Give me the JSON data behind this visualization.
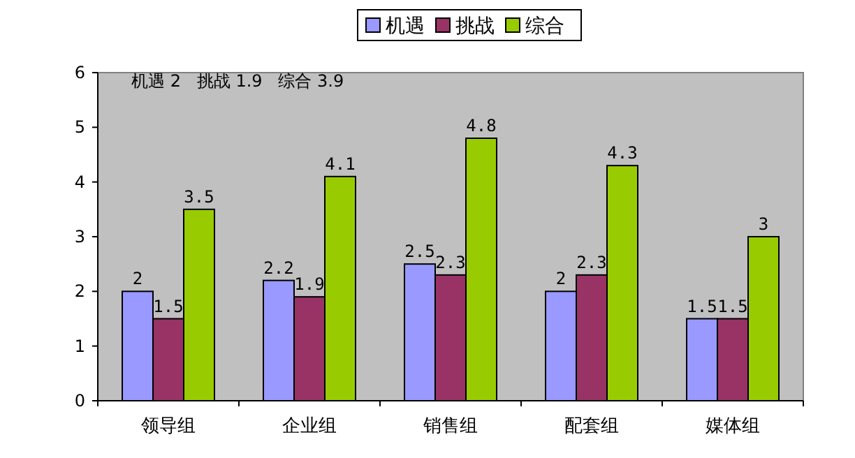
{
  "chart_data": {
    "type": "bar",
    "categories": [
      "领导组",
      "企业组",
      "销售组",
      "配套组",
      "媒体组"
    ],
    "series": [
      {
        "name": "机遇",
        "color": "#9999ff",
        "values": [
          2,
          2.2,
          2.5,
          2,
          1.5
        ]
      },
      {
        "name": "挑战",
        "color": "#993366",
        "values": [
          1.5,
          1.9,
          2.3,
          2.3,
          1.5
        ]
      },
      {
        "name": "综合",
        "color": "#99cc00",
        "values": [
          3.5,
          4.1,
          4.8,
          4.3,
          3
        ]
      }
    ],
    "ylim": [
      0,
      6
    ],
    "yticks": [
      0,
      1,
      2,
      3,
      4,
      5,
      6
    ],
    "data_labels": true,
    "legend": "top",
    "grid": false,
    "annotations": [
      "机遇 2   挑战 1.9   综合 3.9"
    ]
  }
}
